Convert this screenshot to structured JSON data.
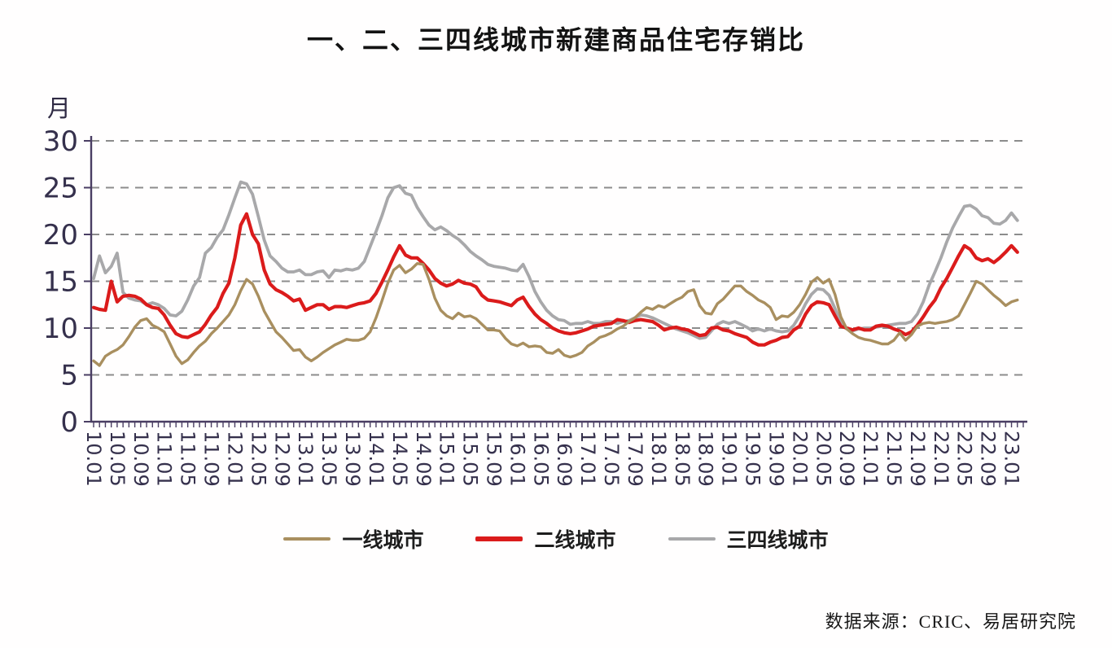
{
  "chart_data": {
    "type": "line",
    "title": "一、二、三四线城市新建商品住宅存销比",
    "ylabel": "月",
    "xlabel": "",
    "ylim": [
      0,
      30
    ],
    "y_ticks": [
      0,
      5,
      10,
      15,
      20,
      25,
      30
    ],
    "grid": "horizontal-dashed",
    "legend_position": "bottom",
    "x_start": "2010.01",
    "x_end": "2023.02",
    "x_months_total": 158,
    "x_label_interval_months": 4,
    "x_tick_labels": [
      "10.01",
      "10.05",
      "10.09",
      "11.01",
      "11.05",
      "11.09",
      "12.01",
      "12.05",
      "12.09",
      "13.01",
      "13.05",
      "13.09",
      "14.01",
      "14.05",
      "14.09",
      "15.01",
      "15.05",
      "15.09",
      "16.01",
      "16.05",
      "16.09",
      "17.01",
      "17.05",
      "17.09",
      "18.01",
      "18.05",
      "18.09",
      "19.01",
      "19.05",
      "19.09",
      "20.01",
      "20.05",
      "20.09",
      "21.01",
      "21.05",
      "21.09",
      "22.01",
      "22.05",
      "22.09",
      "23.01"
    ],
    "series": [
      {
        "name": "一线城市",
        "color": "#A98F5F",
        "values": [
          6.5,
          6.0,
          7.0,
          7.4,
          7.7,
          8.2,
          9.1,
          10.1,
          10.8,
          11.0,
          10.3,
          10.0,
          9.6,
          8.3,
          7.0,
          6.2,
          6.6,
          7.4,
          8.1,
          8.6,
          9.4,
          10.0,
          10.7,
          11.4,
          12.5,
          14.0,
          15.2,
          14.7,
          13.4,
          11.8,
          10.7,
          9.6,
          9.0,
          8.3,
          7.6,
          7.7,
          6.9,
          6.5,
          6.9,
          7.4,
          7.8,
          8.2,
          8.5,
          8.8,
          8.7,
          8.7,
          8.9,
          9.6,
          11.1,
          12.9,
          14.8,
          16.2,
          16.7,
          15.9,
          16.3,
          16.9,
          16.8,
          15.2,
          13.2,
          11.9,
          11.3,
          11.0,
          11.6,
          11.2,
          11.3,
          11.0,
          10.4,
          9.8,
          9.8,
          9.7,
          8.9,
          8.3,
          8.1,
          8.4,
          8.0,
          8.1,
          8.0,
          7.4,
          7.3,
          7.7,
          7.1,
          6.9,
          7.1,
          7.4,
          8.1,
          8.5,
          9.0,
          9.2,
          9.5,
          9.9,
          10.2,
          10.7,
          11.1,
          11.7,
          12.2,
          12.0,
          12.4,
          12.2,
          12.6,
          13.0,
          13.3,
          13.9,
          14.1,
          12.4,
          11.6,
          11.5,
          12.6,
          13.1,
          13.8,
          14.5,
          14.5,
          13.9,
          13.5,
          13.0,
          12.7,
          12.2,
          10.9,
          11.3,
          11.2,
          11.7,
          12.5,
          13.6,
          14.9,
          15.4,
          14.8,
          15.2,
          13.6,
          11.2,
          9.9,
          9.4,
          9.0,
          8.8,
          8.7,
          8.5,
          8.3,
          8.3,
          8.7,
          9.5,
          8.7,
          9.3,
          10.2,
          10.5,
          10.6,
          10.5,
          10.6,
          10.7,
          10.9,
          11.3,
          12.5,
          13.7,
          15.0,
          14.7,
          14.1,
          13.5,
          13.0,
          12.4,
          12.8,
          13.0
        ]
      },
      {
        "name": "二线城市",
        "color": "#DB1B1B",
        "values": [
          12.2,
          12.0,
          11.9,
          15.0,
          12.8,
          13.4,
          13.5,
          13.4,
          13.1,
          12.5,
          12.2,
          12.1,
          11.4,
          10.3,
          9.4,
          9.1,
          9.0,
          9.3,
          9.6,
          10.4,
          11.4,
          12.2,
          13.7,
          14.8,
          17.5,
          21.0,
          22.2,
          20.0,
          19.0,
          16.2,
          14.7,
          14.1,
          13.8,
          13.4,
          12.9,
          13.1,
          11.9,
          12.2,
          12.5,
          12.5,
          12.0,
          12.3,
          12.3,
          12.2,
          12.4,
          12.6,
          12.7,
          12.9,
          13.7,
          14.9,
          16.2,
          17.6,
          18.8,
          17.8,
          17.5,
          17.5,
          16.9,
          16.2,
          15.3,
          14.8,
          14.5,
          14.7,
          15.1,
          14.8,
          14.7,
          14.4,
          13.5,
          13.0,
          12.9,
          12.8,
          12.6,
          12.4,
          13.0,
          13.3,
          12.3,
          11.5,
          10.9,
          10.5,
          10.0,
          9.7,
          9.5,
          9.4,
          9.5,
          9.7,
          9.9,
          10.2,
          10.3,
          10.4,
          10.5,
          10.9,
          10.8,
          10.6,
          10.8,
          10.9,
          10.8,
          10.7,
          10.3,
          9.8,
          10.0,
          10.1,
          9.9,
          9.8,
          9.5,
          9.2,
          9.3,
          10.0,
          10.1,
          9.8,
          9.7,
          9.4,
          9.2,
          9.0,
          8.5,
          8.2,
          8.2,
          8.5,
          8.7,
          9.0,
          9.1,
          9.8,
          10.2,
          11.5,
          12.4,
          12.8,
          12.7,
          12.5,
          11.3,
          10.2,
          10.0,
          9.8,
          10.0,
          9.8,
          9.8,
          10.2,
          10.3,
          10.2,
          9.9,
          9.7,
          9.3,
          9.6,
          10.3,
          11.2,
          12.2,
          13.0,
          14.3,
          15.3,
          16.5,
          17.7,
          18.8,
          18.4,
          17.5,
          17.2,
          17.4,
          17.0,
          17.5,
          18.1,
          18.8,
          18.1
        ]
      },
      {
        "name": "三四线城市",
        "color": "#A8A8AA",
        "values": [
          15.3,
          17.7,
          15.9,
          16.6,
          18.0,
          13.8,
          13.2,
          13.0,
          12.9,
          12.5,
          12.7,
          12.5,
          12.1,
          11.4,
          11.3,
          11.8,
          13.0,
          14.5,
          15.4,
          18.0,
          18.6,
          19.7,
          20.5,
          22.1,
          23.9,
          25.6,
          25.4,
          24.3,
          21.9,
          19.4,
          17.7,
          17.1,
          16.4,
          16.0,
          16.0,
          16.2,
          15.7,
          15.7,
          16.0,
          16.1,
          15.4,
          16.2,
          16.1,
          16.3,
          16.2,
          16.4,
          17.1,
          18.7,
          20.3,
          22.0,
          23.9,
          25.0,
          25.2,
          24.4,
          24.2,
          22.9,
          21.9,
          21.0,
          20.5,
          20.8,
          20.4,
          19.9,
          19.5,
          18.9,
          18.2,
          17.7,
          17.3,
          16.8,
          16.6,
          16.5,
          16.4,
          16.2,
          16.1,
          16.8,
          15.5,
          13.9,
          12.8,
          11.9,
          11.3,
          10.9,
          10.8,
          10.4,
          10.5,
          10.5,
          10.7,
          10.5,
          10.5,
          10.7,
          10.7,
          10.5,
          10.7,
          10.8,
          11.1,
          11.4,
          11.3,
          11.1,
          10.8,
          10.5,
          10.2,
          9.9,
          9.7,
          9.5,
          9.2,
          8.9,
          9.0,
          9.7,
          10.4,
          10.7,
          10.5,
          10.7,
          10.4,
          10.1,
          9.7,
          9.9,
          9.7,
          9.9,
          9.7,
          9.6,
          9.7,
          10.3,
          11.3,
          12.6,
          13.6,
          14.2,
          14.1,
          13.5,
          12.1,
          10.5,
          9.9,
          9.7,
          9.9,
          10.0,
          10.0,
          10.1,
          10.2,
          10.3,
          10.4,
          10.5,
          10.5,
          10.7,
          11.5,
          12.8,
          14.6,
          16.0,
          17.5,
          19.2,
          20.7,
          21.9,
          23.0,
          23.1,
          22.7,
          22.0,
          21.8,
          21.2,
          21.1,
          21.5,
          22.3,
          21.5
        ]
      }
    ],
    "source_note": "数据来源：CRIC、易居研究院"
  },
  "colors": {
    "axis": "#4A3E63",
    "tick_text": "#35304C",
    "gridline": "#8C8C8C",
    "title_text": "#131313"
  }
}
